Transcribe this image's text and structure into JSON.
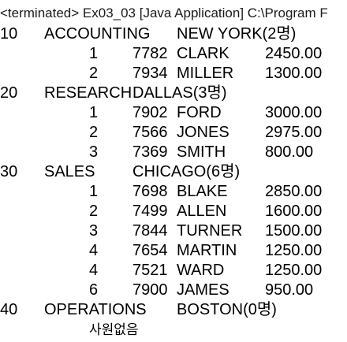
{
  "header": "<terminated> Ex03_03 [Java Application] C:\\Program F",
  "departments": [
    {
      "deptno": "10",
      "dname": "ACCOUNTING",
      "loc": "NEW YORK(2명)",
      "employees": [
        {
          "rank": "1",
          "empno": "7782",
          "ename": "CLARK",
          "sal": "2450.00"
        },
        {
          "rank": "2",
          "empno": "7934",
          "ename": "MILLER",
          "sal": "1300.00"
        }
      ]
    },
    {
      "deptno": "20",
      "dname": "RESEARCH",
      "loc": "DALLAS(3명)",
      "employees": [
        {
          "rank": "1",
          "empno": "7902",
          "ename": "FORD",
          "sal": "3000.00"
        },
        {
          "rank": "2",
          "empno": "7566",
          "ename": "JONES",
          "sal": "2975.00"
        },
        {
          "rank": "3",
          "empno": "7369",
          "ename": "SMITH",
          "sal": "800.00"
        }
      ]
    },
    {
      "deptno": "30",
      "dname": "SALES",
      "loc": "CHICAGO(6명)",
      "employees": [
        {
          "rank": "1",
          "empno": "7698",
          "ename": "BLAKE",
          "sal": "2850.00"
        },
        {
          "rank": "2",
          "empno": "7499",
          "ename": "ALLEN",
          "sal": "1600.00"
        },
        {
          "rank": "3",
          "empno": "7844",
          "ename": "TURNER",
          "sal": "1500.00"
        },
        {
          "rank": "4",
          "empno": "7654",
          "ename": "MARTIN",
          "sal": "1250.00"
        },
        {
          "rank": "4",
          "empno": "7521",
          "ename": "WARD",
          "sal": "1250.00"
        },
        {
          "rank": "6",
          "empno": "7900",
          "ename": "JAMES",
          "sal": "950.00"
        }
      ]
    },
    {
      "deptno": "40",
      "dname": "OPERATIONS",
      "loc": "BOSTON(0명)",
      "employees": [],
      "note": "사원없음"
    }
  ]
}
